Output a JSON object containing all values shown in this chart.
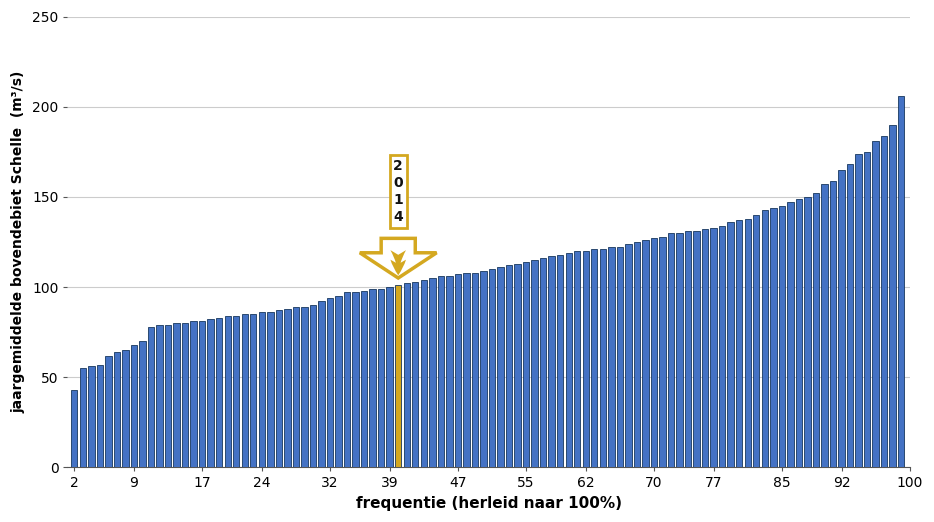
{
  "title": "",
  "xlabel": "frequentie (herleid naar 100%)",
  "ylabel": "jaargemiddelde bovendebiet Schelle  (m³/s)",
  "ylim": [
    0,
    250
  ],
  "yticks": [
    0,
    50,
    100,
    150,
    200,
    250
  ],
  "xticks": [
    2,
    9,
    17,
    24,
    32,
    39,
    47,
    55,
    62,
    70,
    77,
    85,
    92,
    100
  ],
  "highlight_index": 38,
  "highlight_color": "#D4A820",
  "bar_color": "#4472C4",
  "bar_edge_color": "#17375E",
  "annotation_color": "#D4A820",
  "values": [
    43,
    55,
    56,
    57,
    62,
    64,
    65,
    68,
    70,
    78,
    79,
    79,
    80,
    80,
    81,
    81,
    82,
    83,
    84,
    84,
    85,
    85,
    86,
    86,
    87,
    88,
    89,
    89,
    90,
    92,
    94,
    95,
    97,
    97,
    98,
    99,
    99,
    100,
    101,
    102,
    103,
    104,
    105,
    106,
    106,
    107,
    108,
    108,
    109,
    110,
    111,
    112,
    113,
    114,
    115,
    116,
    117,
    118,
    119,
    120,
    120,
    121,
    121,
    122,
    122,
    124,
    125,
    126,
    127,
    128,
    130,
    130,
    131,
    131,
    132,
    133,
    134,
    136,
    137,
    138,
    140,
    143,
    144,
    145,
    147,
    149,
    150,
    152,
    157,
    159,
    165,
    168,
    174,
    175,
    181,
    184,
    190,
    206
  ]
}
